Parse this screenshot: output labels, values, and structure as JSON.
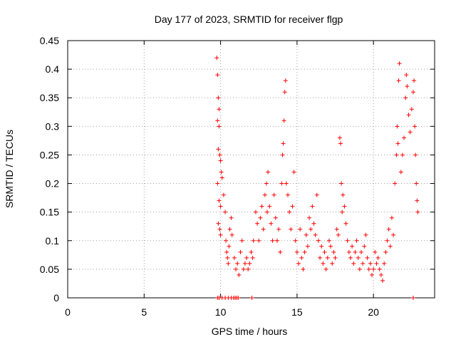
{
  "chart_data": {
    "type": "scatter",
    "title": "Day 177 of 2023, SRMTID for receiver flgp",
    "xlabel": "GPS time / hours",
    "ylabel": "SRMTID / TECUs",
    "xlim": [
      0,
      24
    ],
    "ylim": [
      0,
      0.45
    ],
    "xticks": [
      0,
      5,
      10,
      15,
      20
    ],
    "yticks": [
      0,
      0.05,
      0.1,
      0.15,
      0.2,
      0.25,
      0.3,
      0.35,
      0.4,
      0.45
    ],
    "xtick_labels": [
      "0",
      "5",
      "10",
      "15",
      "20"
    ],
    "ytick_labels": [
      "0",
      "0.05",
      "0.1",
      "0.15",
      "0.2",
      "0.25",
      "0.3",
      "0.35",
      "0.4",
      "0.45"
    ],
    "grid": true,
    "marker": "+",
    "color": "#ff0000",
    "series": [
      {
        "name": "",
        "points": [
          [
            9.75,
            0.42
          ],
          [
            9.8,
            0.39
          ],
          [
            9.85,
            0.35
          ],
          [
            9.9,
            0.33
          ],
          [
            9.8,
            0.31
          ],
          [
            9.9,
            0.3
          ],
          [
            9.85,
            0.26
          ],
          [
            9.95,
            0.25
          ],
          [
            10.0,
            0.24
          ],
          [
            10.05,
            0.22
          ],
          [
            9.8,
            0.2
          ],
          [
            10.1,
            0.21
          ],
          [
            9.9,
            0.17
          ],
          [
            10.0,
            0.16
          ],
          [
            9.85,
            0.13
          ],
          [
            9.95,
            0.12
          ],
          [
            10.0,
            0.11
          ],
          [
            10.2,
            0.18
          ],
          [
            10.3,
            0.15
          ],
          [
            10.35,
            0.1
          ],
          [
            10.4,
            0.08
          ],
          [
            10.45,
            0.07
          ],
          [
            10.5,
            0.06
          ],
          [
            10.55,
            0.09
          ],
          [
            10.6,
            0.12
          ],
          [
            10.7,
            0.14
          ],
          [
            10.75,
            0.11
          ],
          [
            10.9,
            0.07
          ],
          [
            11.0,
            0.05
          ],
          [
            11.1,
            0.06
          ],
          [
            11.2,
            0.04
          ],
          [
            11.3,
            0.08
          ],
          [
            11.4,
            0.1
          ],
          [
            11.5,
            0.05
          ],
          [
            11.6,
            0.06
          ],
          [
            11.7,
            0.07
          ],
          [
            11.8,
            0.05
          ],
          [
            11.9,
            0.06
          ],
          [
            12.0,
            0.08
          ],
          [
            12.1,
            0.07
          ],
          [
            12.15,
            0.1
          ],
          [
            12.3,
            0.15
          ],
          [
            12.4,
            0.13
          ],
          [
            12.5,
            0.1
          ],
          [
            12.6,
            0.14
          ],
          [
            12.7,
            0.16
          ],
          [
            12.8,
            0.12
          ],
          [
            12.9,
            0.18
          ],
          [
            13.0,
            0.2
          ],
          [
            13.05,
            0.15
          ],
          [
            13.1,
            0.22
          ],
          [
            13.2,
            0.16
          ],
          [
            13.3,
            0.13
          ],
          [
            13.4,
            0.1
          ],
          [
            13.5,
            0.18
          ],
          [
            13.6,
            0.14
          ],
          [
            13.7,
            0.1
          ],
          [
            13.8,
            0.12
          ],
          [
            13.9,
            0.08
          ],
          [
            14.0,
            0.2
          ],
          [
            14.05,
            0.25
          ],
          [
            14.1,
            0.27
          ],
          [
            14.15,
            0.31
          ],
          [
            14.2,
            0.36
          ],
          [
            14.25,
            0.38
          ],
          [
            14.3,
            0.2
          ],
          [
            14.4,
            0.18
          ],
          [
            14.5,
            0.15
          ],
          [
            14.6,
            0.12
          ],
          [
            14.7,
            0.16
          ],
          [
            14.8,
            0.22
          ],
          [
            14.9,
            0.1
          ],
          [
            15.0,
            0.08
          ],
          [
            15.1,
            0.06
          ],
          [
            15.2,
            0.12
          ],
          [
            15.3,
            0.07
          ],
          [
            15.4,
            0.05
          ],
          [
            15.5,
            0.08
          ],
          [
            15.6,
            0.11
          ],
          [
            15.7,
            0.09
          ],
          [
            15.8,
            0.14
          ],
          [
            15.9,
            0.12
          ],
          [
            16.0,
            0.16
          ],
          [
            16.1,
            0.13
          ],
          [
            16.2,
            0.11
          ],
          [
            16.3,
            0.18
          ],
          [
            16.4,
            0.1
          ],
          [
            16.5,
            0.07
          ],
          [
            16.6,
            0.09
          ],
          [
            16.7,
            0.06
          ],
          [
            16.8,
            0.08
          ],
          [
            16.9,
            0.05
          ],
          [
            17.0,
            0.07
          ],
          [
            17.1,
            0.1
          ],
          [
            17.2,
            0.09
          ],
          [
            17.3,
            0.06
          ],
          [
            17.4,
            0.08
          ],
          [
            17.5,
            0.07
          ],
          [
            17.6,
            0.12
          ],
          [
            17.7,
            0.11
          ],
          [
            17.8,
            0.28
          ],
          [
            17.85,
            0.27
          ],
          [
            17.9,
            0.2
          ],
          [
            17.95,
            0.15
          ],
          [
            18.0,
            0.18
          ],
          [
            18.1,
            0.16
          ],
          [
            18.2,
            0.13
          ],
          [
            18.3,
            0.1
          ],
          [
            18.4,
            0.08
          ],
          [
            18.5,
            0.07
          ],
          [
            18.6,
            0.09
          ],
          [
            18.7,
            0.06
          ],
          [
            18.8,
            0.08
          ],
          [
            18.9,
            0.1
          ],
          [
            19.0,
            0.07
          ],
          [
            19.1,
            0.05
          ],
          [
            19.2,
            0.08
          ],
          [
            19.3,
            0.06
          ],
          [
            19.4,
            0.09
          ],
          [
            19.5,
            0.11
          ],
          [
            19.6,
            0.07
          ],
          [
            19.7,
            0.05
          ],
          [
            19.8,
            0.06
          ],
          [
            19.9,
            0.04
          ],
          [
            20.0,
            0.05
          ],
          [
            20.1,
            0.08
          ],
          [
            20.2,
            0.06
          ],
          [
            20.3,
            0.07
          ],
          [
            20.4,
            0.05
          ],
          [
            20.5,
            0.04
          ],
          [
            20.6,
            0.03
          ],
          [
            20.7,
            0.06
          ],
          [
            20.8,
            0.08
          ],
          [
            20.9,
            0.1
          ],
          [
            21.0,
            0.12
          ],
          [
            21.1,
            0.09
          ],
          [
            21.2,
            0.14
          ],
          [
            21.3,
            0.11
          ],
          [
            21.4,
            0.2
          ],
          [
            21.5,
            0.25
          ],
          [
            21.55,
            0.3
          ],
          [
            21.6,
            0.27
          ],
          [
            21.65,
            0.38
          ],
          [
            21.7,
            0.41
          ],
          [
            21.8,
            0.22
          ],
          [
            21.9,
            0.25
          ],
          [
            22.0,
            0.28
          ],
          [
            22.1,
            0.35
          ],
          [
            22.15,
            0.39
          ],
          [
            22.2,
            0.37
          ],
          [
            22.3,
            0.32
          ],
          [
            22.4,
            0.29
          ],
          [
            22.5,
            0.33
          ],
          [
            22.6,
            0.36
          ],
          [
            22.65,
            0.38
          ],
          [
            22.7,
            0.3
          ],
          [
            22.75,
            0.25
          ],
          [
            22.8,
            0.2
          ],
          [
            22.85,
            0.17
          ],
          [
            22.9,
            0.15
          ]
        ],
        "zero_points_x": [
          9.8,
          9.9,
          10.1,
          10.3,
          10.5,
          10.7,
          10.85,
          10.95,
          11.05,
          11.15,
          12.05,
          22.6
        ]
      }
    ]
  }
}
